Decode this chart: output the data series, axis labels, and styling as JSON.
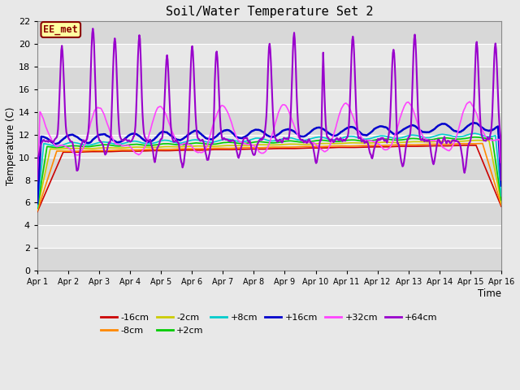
{
  "title": "Soil/Water Temperature Set 2",
  "xlabel": "Time",
  "ylabel": "Temperature (C)",
  "xlim": [
    0,
    15
  ],
  "ylim": [
    0,
    22
  ],
  "yticks": [
    0,
    2,
    4,
    6,
    8,
    10,
    12,
    14,
    16,
    18,
    20,
    22
  ],
  "xtick_labels": [
    "Apr 1",
    "Apr 2",
    "Apr 3",
    "Apr 4",
    "Apr 5",
    "Apr 6",
    "Apr 7",
    "Apr 8",
    "Apr 9",
    "Apr 10",
    "Apr 11",
    "Apr 12",
    "Apr 13",
    "Apr 14",
    "Apr 15",
    "Apr 16"
  ],
  "background_color": "#e8e8e8",
  "plot_bg_color": "#e8e8e8",
  "band_colors": [
    "#d8d8d8",
    "#e8e8e8"
  ],
  "annotation_text": "EE_met",
  "annotation_bg": "#ffffa0",
  "annotation_border": "#8b0000",
  "series_order": [
    "-16cm",
    "-8cm",
    "-2cm",
    "+2cm",
    "+8cm",
    "+16cm",
    "+32cm",
    "+64cm"
  ],
  "series": {
    "-16cm": {
      "color": "#cc0000",
      "lw": 1.2
    },
    "-8cm": {
      "color": "#ff8800",
      "lw": 1.2
    },
    "-2cm": {
      "color": "#cccc00",
      "lw": 1.2
    },
    "+2cm": {
      "color": "#00cc00",
      "lw": 1.2
    },
    "+8cm": {
      "color": "#00cccc",
      "lw": 1.2
    },
    "+16cm": {
      "color": "#0000cc",
      "lw": 1.8
    },
    "+32cm": {
      "color": "#ff44ff",
      "lw": 1.2
    },
    "+64cm": {
      "color": "#9900cc",
      "lw": 1.5
    }
  },
  "legend_row1": [
    "-16cm",
    "-8cm",
    "-2cm",
    "+2cm",
    "+8cm",
    "+16cm"
  ],
  "legend_row2": [
    "+32cm",
    "+64cm"
  ]
}
